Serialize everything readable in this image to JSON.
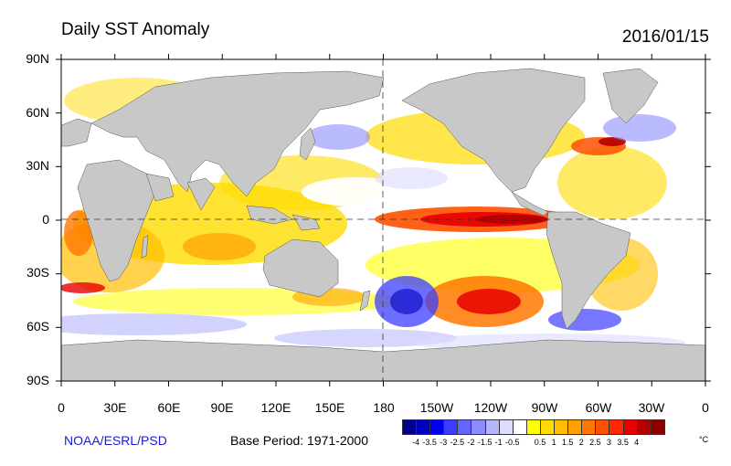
{
  "header": {
    "title": "Daily SST Anomaly",
    "date": "2016/01/15"
  },
  "map": {
    "lat_labels": [
      "90N",
      "60N",
      "30N",
      "0",
      "30S",
      "60S",
      "90S"
    ],
    "lon_labels": [
      "0",
      "30E",
      "60E",
      "90E",
      "120E",
      "150E",
      "180",
      "150W",
      "120W",
      "90W",
      "60W",
      "30W",
      "0"
    ],
    "land_color": "#c8c8c8",
    "ocean_neutral_color": "#ffffff"
  },
  "footer": {
    "credit": "NOAA/ESRL/PSD",
    "base_period": "Base Period: 1971-2000"
  },
  "colorbar": {
    "colors": [
      "#00008c",
      "#0000c0",
      "#0000f0",
      "#3c3cff",
      "#6464ff",
      "#8c8cff",
      "#b4b4ff",
      "#dcdcff",
      "#ffffff",
      "#ffff00",
      "#ffdc00",
      "#ffbe00",
      "#ffa000",
      "#ff7800",
      "#ff5000",
      "#ff2800",
      "#e60000",
      "#b40000",
      "#8c0000"
    ],
    "ticks": [
      "-4",
      "-3.5",
      "-3",
      "-2.5",
      "-2",
      "-1.5",
      "-1",
      "-0.5",
      "0.5",
      "1",
      "1.5",
      "2",
      "2.5",
      "3",
      "3.5",
      "4"
    ],
    "unit": "°C"
  }
}
